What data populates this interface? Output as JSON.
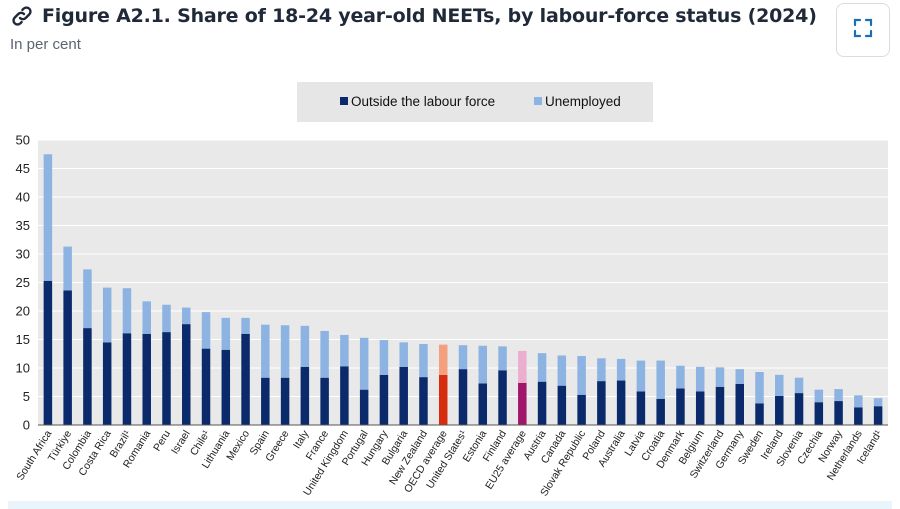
{
  "header": {
    "title": "Figure A2.1. Share of 18-24 year-old NEETs, by labour-force status (2024)",
    "subtitle": "In per cent"
  },
  "icons": {
    "link": "link-icon",
    "expand": "expand-icon"
  },
  "colors": {
    "outside": "#0b2a6b",
    "unemployed": "#8db3e2",
    "oecd_outside": "#d62d0e",
    "oecd_unemployed": "#f4a07f",
    "eu_outside": "#a1156a",
    "eu_unemployed": "#ecaecf",
    "plot_bg": "#e9e9e9",
    "legend_bg": "#e6e6e6"
  },
  "chart_data": {
    "type": "bar",
    "stacked": true,
    "title": "Figure A2.1. Share of 18-24 year-old NEETs, by labour-force status (2024)",
    "ylabel": "In per cent",
    "ylim": [
      0,
      50
    ],
    "yticks": [
      0,
      5,
      10,
      15,
      20,
      25,
      30,
      35,
      40,
      45,
      50
    ],
    "grid": true,
    "legend_position": "top-center",
    "categories": [
      "South Africa",
      "Türkiye",
      "Colombia",
      "Costa Rica",
      "Brazil¹",
      "Romania",
      "Peru",
      "Israel",
      "Chile¹",
      "Lithuania",
      "Mexico",
      "Spain",
      "Greece",
      "Italy",
      "France",
      "United Kingdom",
      "Portugal",
      "Hungary",
      "Bulgaria",
      "New Zealand",
      "OECD average",
      "United States¹",
      "Estonia",
      "Finland",
      "EU25 average",
      "Austria",
      "Canada",
      "Slovak Republic",
      "Poland",
      "Australia",
      "Latvia",
      "Croatia",
      "Denmark",
      "Belgium",
      "Switzerland",
      "Germany",
      "Sweden",
      "Ireland",
      "Slovenia",
      "Czechia",
      "Norway",
      "Netherlands",
      "Iceland¹"
    ],
    "highlight": {
      "OECD average": "oecd",
      "EU25 average": "eu"
    },
    "series": [
      {
        "name": "Outside the labour force",
        "values": [
          25.3,
          23.6,
          17.0,
          14.5,
          16.1,
          16.0,
          16.3,
          17.7,
          13.4,
          13.2,
          16.0,
          8.3,
          8.3,
          10.2,
          8.3,
          10.3,
          6.2,
          8.8,
          10.2,
          8.4,
          8.8,
          9.8,
          7.3,
          9.6,
          7.4,
          7.6,
          6.9,
          5.3,
          7.7,
          7.8,
          5.9,
          4.6,
          6.4,
          5.9,
          6.7,
          7.2,
          3.8,
          5.1,
          5.6,
          4.0,
          4.2,
          3.1,
          3.3
        ]
      },
      {
        "name": "Unemployed",
        "values": [
          22.2,
          7.7,
          10.3,
          9.6,
          7.9,
          5.7,
          4.8,
          2.9,
          6.4,
          5.6,
          2.8,
          9.3,
          9.2,
          7.2,
          8.2,
          5.5,
          9.1,
          6.1,
          4.3,
          5.8,
          5.3,
          4.2,
          6.6,
          4.2,
          5.6,
          5.0,
          5.3,
          6.8,
          4.0,
          3.8,
          5.4,
          6.7,
          4.0,
          4.3,
          3.4,
          2.6,
          5.5,
          3.7,
          2.7,
          2.2,
          2.1,
          2.1,
          1.4
        ]
      }
    ]
  }
}
